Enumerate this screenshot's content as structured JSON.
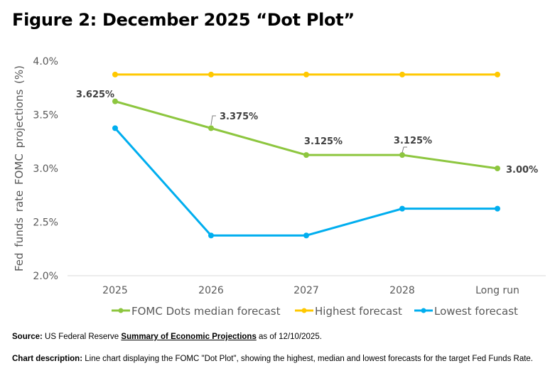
{
  "title": "Figure 2: December 2025 “Dot Plot”",
  "chart_data": {
    "type": "line",
    "title": "Figure 2: December 2025 “Dot Plot”",
    "xlabel": "",
    "ylabel": "Fed funds rate FOMC projections (%)",
    "categories": [
      "2025",
      "2026",
      "2027",
      "2028",
      "Long run"
    ],
    "ylim": [
      2.0,
      4.0
    ],
    "yticks": [
      "2.0%",
      "2.5%",
      "3.0%",
      "3.5%",
      "4.0%"
    ],
    "ytick_values": [
      2.0,
      2.5,
      3.0,
      3.5,
      4.0
    ],
    "grid": false,
    "legend": "bottom",
    "series": [
      {
        "name": "FOMC Dots median forecast",
        "color": "#8dc63f",
        "values": [
          3.625,
          3.375,
          3.125,
          3.125,
          3.0
        ],
        "labels": [
          "3.625%",
          "3.375%",
          "3.125%",
          "3.125%",
          "3.00%"
        ]
      },
      {
        "name": "Highest forecast",
        "color": "#ffc800",
        "values": [
          3.875,
          3.875,
          3.875,
          3.875,
          3.875
        ]
      },
      {
        "name": "Lowest forecast",
        "color": "#00aeef",
        "values": [
          3.375,
          2.375,
          2.375,
          2.625,
          2.625
        ]
      }
    ]
  },
  "source": {
    "label": "Source:",
    "text_before": " US Federal Reserve ",
    "link": "Summary of Economic Projections",
    "text_after": " as of 12/10/2025."
  },
  "description": {
    "label": "Chart description:",
    "text": " Line chart displaying the FOMC \"Dot Plot\", showing the highest, median and lowest forecasts for the target Fed Funds Rate."
  }
}
